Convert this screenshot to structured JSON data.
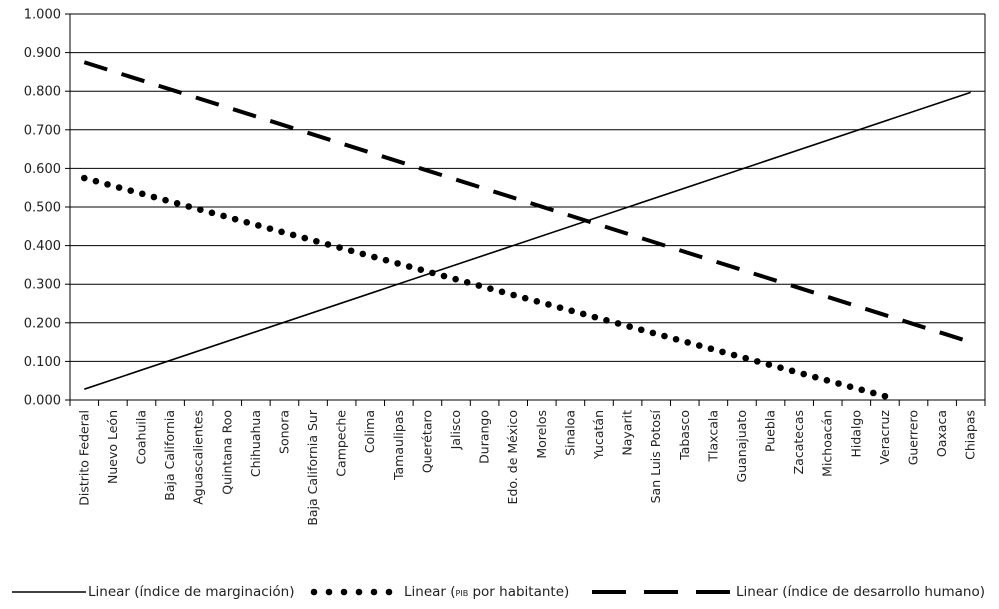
{
  "chart_data": {
    "type": "line",
    "title": "",
    "xlabel": "",
    "ylabel": "",
    "ylim": [
      0,
      1
    ],
    "yticks": [
      "0.000",
      "0.100",
      "0.200",
      "0.300",
      "0.400",
      "0.500",
      "0.600",
      "0.700",
      "0.800",
      "0.900",
      "1.000"
    ],
    "grid": "horizontal",
    "legend_position": "bottom",
    "categories": [
      "Distrito Federal",
      "Nuevo León",
      "Coahuila",
      "Baja California",
      "Aguascalientes",
      "Quintana Roo",
      "Chihuahua",
      "Sonora",
      "Baja California Sur",
      "Campeche",
      "Colima",
      "Tamaulipas",
      "Querétaro",
      "Jalisco",
      "Durango",
      "Edo. de México",
      "Morelos",
      "Sinaloa",
      "Yucatán",
      "Nayarit",
      "San Luis Potosí",
      "Tabasco",
      "Tlaxcala",
      "Guanajuato",
      "Puebla",
      "Zacatecas",
      "Michoacán",
      "Hidalgo",
      "Veracruz",
      "Guerrero",
      "Oaxaca",
      "Chiapas"
    ],
    "series": [
      {
        "name": "Linear (índice de marginación)",
        "style": "solid",
        "start": 0.028,
        "end": 0.797,
        "first_index": 0,
        "last_index": 31
      },
      {
        "name_prefix": "Linear (",
        "name_small": "PIB",
        "name_suffix": " por habitante)",
        "style": "dotted",
        "start": 0.575,
        "end": 0.01,
        "first_index": 0,
        "last_index": 28
      },
      {
        "name": "Linear (índice de desarrollo humano)",
        "style": "dashed",
        "start": 0.875,
        "end": 0.15,
        "first_index": 0,
        "last_index": 31
      }
    ]
  }
}
